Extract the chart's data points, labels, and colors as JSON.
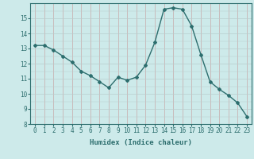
{
  "x": [
    0,
    1,
    2,
    3,
    4,
    5,
    6,
    7,
    8,
    9,
    10,
    11,
    12,
    13,
    14,
    15,
    16,
    17,
    18,
    19,
    20,
    21,
    22,
    23
  ],
  "y": [
    13.2,
    13.2,
    12.9,
    12.5,
    12.1,
    11.5,
    11.2,
    10.8,
    10.4,
    11.1,
    10.9,
    11.1,
    11.9,
    13.4,
    15.6,
    15.7,
    15.6,
    14.5,
    12.6,
    10.8,
    10.3,
    9.9,
    9.4,
    8.5
  ],
  "line_color": "#2d6e6e",
  "marker": "D",
  "marker_size": 2.0,
  "line_width": 1.0,
  "xlabel": "Humidex (Indice chaleur)",
  "ylim": [
    8,
    16
  ],
  "xlim": [
    -0.5,
    23.5
  ],
  "yticks": [
    8,
    9,
    10,
    11,
    12,
    13,
    14,
    15
  ],
  "xticks": [
    0,
    1,
    2,
    3,
    4,
    5,
    6,
    7,
    8,
    9,
    10,
    11,
    12,
    13,
    14,
    15,
    16,
    17,
    18,
    19,
    20,
    21,
    22,
    23
  ],
  "xtick_labels": [
    "0",
    "1",
    "2",
    "3",
    "4",
    "5",
    "6",
    "7",
    "8",
    "9",
    "10",
    "11",
    "12",
    "13",
    "14",
    "15",
    "16",
    "17",
    "18",
    "19",
    "20",
    "21",
    "22",
    "23"
  ],
  "bg_color": "#cdeaea",
  "grid_v_color": "#c8a8a8",
  "grid_h_color": "#b8cccc",
  "xlabel_fontsize": 6.5,
  "tick_fontsize": 5.5
}
